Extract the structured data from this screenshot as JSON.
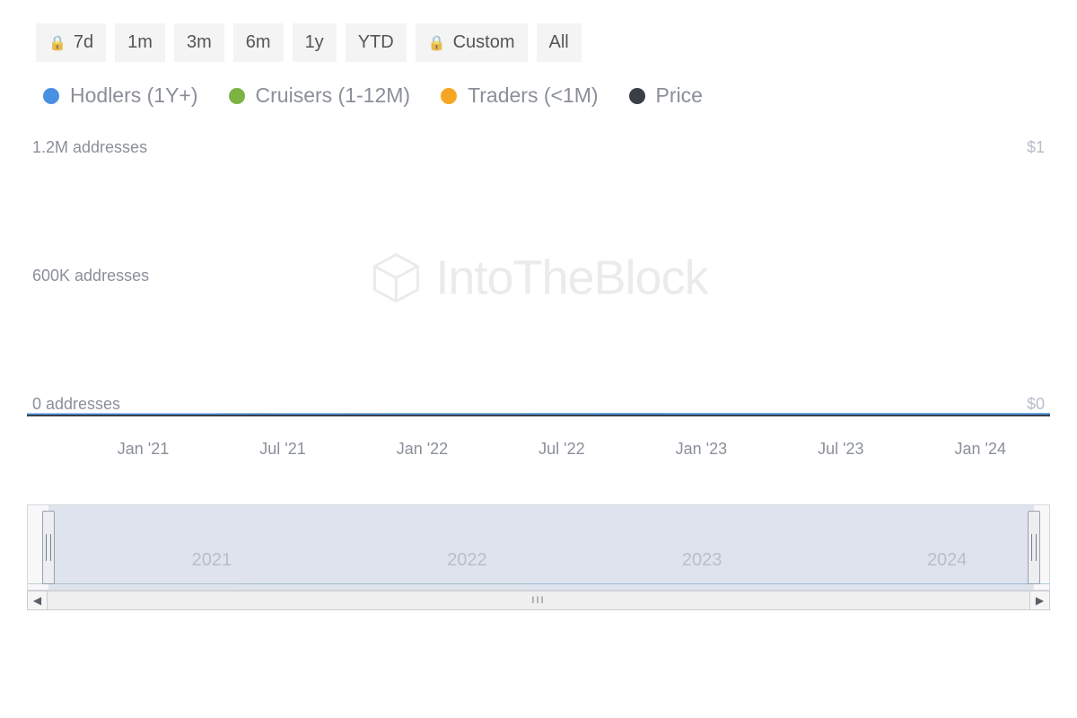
{
  "time_range_buttons": [
    {
      "label": "7d",
      "locked": true
    },
    {
      "label": "1m",
      "locked": false
    },
    {
      "label": "3m",
      "locked": false
    },
    {
      "label": "6m",
      "locked": false
    },
    {
      "label": "1y",
      "locked": false
    },
    {
      "label": "YTD",
      "locked": false
    },
    {
      "label": "Custom",
      "locked": true
    },
    {
      "label": "All",
      "locked": false
    }
  ],
  "legend": [
    {
      "label": "Hodlers (1Y+)",
      "color": "#4a90e2"
    },
    {
      "label": "Cruisers (1-12M)",
      "color": "#7cb342"
    },
    {
      "label": "Traders (<1M)",
      "color": "#f5a623"
    },
    {
      "label": "Price",
      "color": "#3a3f47"
    }
  ],
  "watermark_text": "IntoTheBlock",
  "chart": {
    "type": "line",
    "background_color": "#ffffff",
    "line_width": 3,
    "y_left_axis": {
      "min": 0,
      "max": 1200000,
      "ticks": [
        {
          "value": 1200000,
          "label": "1.2M addresses"
        },
        {
          "value": 600000,
          "label": "600K addresses"
        },
        {
          "value": 0,
          "label": "0 addresses"
        }
      ],
      "label_color": "#8a8f99",
      "label_fontsize": 18
    },
    "y_right_axis": {
      "min": 0,
      "max": 1,
      "ticks": [
        {
          "value": 1,
          "label": "$1"
        },
        {
          "value": 0,
          "label": "$0"
        }
      ],
      "label_color": "#b8bec9",
      "label_fontsize": 18
    },
    "x_axis": {
      "domain_min": 0,
      "domain_max": 44,
      "ticks": [
        {
          "label": "Jan '21",
          "pos": 5
        },
        {
          "label": "Jul '21",
          "pos": 11
        },
        {
          "label": "Jan '22",
          "pos": 17
        },
        {
          "label": "Jul '22",
          "pos": 23
        },
        {
          "label": "Jan '23",
          "pos": 29
        },
        {
          "label": "Jul '23",
          "pos": 35
        },
        {
          "label": "Jan '24",
          "pos": 41
        }
      ],
      "tick_color": "#8a8f99",
      "tick_fontsize": 18
    },
    "axis_line_color": "#3a3f47",
    "series": {
      "hodlers": {
        "color": "#4a90e2",
        "points_y": [
          0,
          0,
          0,
          0,
          0,
          0,
          0,
          0,
          0,
          0,
          0,
          0,
          0,
          0,
          0,
          0,
          0,
          0,
          0,
          10,
          30,
          80,
          240,
          400,
          530,
          630,
          710,
          770,
          800,
          840,
          870,
          890,
          910,
          930,
          950,
          965,
          970,
          980,
          1000,
          1020,
          1035,
          1045,
          1050,
          1050,
          1048
        ]
      },
      "cruisers": {
        "color": "#7cb342",
        "points_y": [
          0,
          0,
          0,
          0,
          0,
          5,
          10,
          15,
          30,
          120,
          280,
          340,
          370,
          490,
          530,
          540,
          640,
          900,
          1050,
          1100,
          1080,
          1030,
          990,
          950,
          870,
          780,
          720,
          670,
          620,
          570,
          530,
          500,
          470,
          450,
          430,
          415,
          400,
          390,
          375,
          360,
          345,
          330,
          320,
          310,
          305
        ]
      },
      "traders": {
        "color": "#f5a623",
        "points_y": [
          0,
          0,
          0,
          0,
          0,
          5,
          10,
          15,
          60,
          320,
          220,
          60,
          50,
          45,
          310,
          250,
          90,
          80,
          75,
          70,
          70,
          70,
          70,
          75,
          72,
          70,
          68,
          66,
          64,
          70,
          62,
          68,
          64,
          60,
          58,
          80,
          62,
          60,
          58,
          56,
          54,
          52,
          70,
          110,
          140
        ]
      },
      "price": {
        "color": "#3a3f47",
        "y_axis": "right",
        "points_y": []
      }
    }
  },
  "navigator": {
    "background_color": "#f8f8f8",
    "mask_color": "rgba(110,135,190,0.18)",
    "handle_color": "#eceef2",
    "selection_start_pct": 2.0,
    "selection_end_pct": 98.5,
    "years": [
      {
        "label": "2021",
        "pos_pct": 18
      },
      {
        "label": "2022",
        "pos_pct": 43
      },
      {
        "label": "2023",
        "pos_pct": 66
      },
      {
        "label": "2024",
        "pos_pct": 90
      }
    ]
  },
  "scrollbar_center_glyph": "III"
}
